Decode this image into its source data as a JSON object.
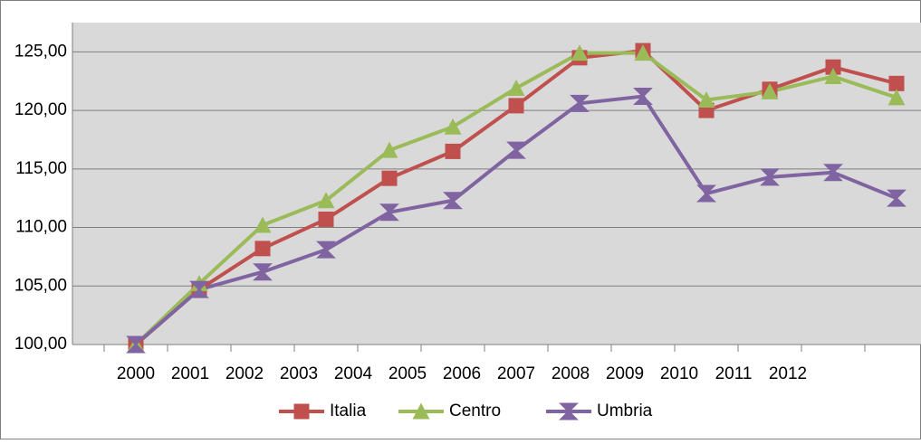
{
  "chart_data": {
    "type": "line",
    "categories": [
      "2000",
      "2001",
      "2002",
      "2003",
      "2004",
      "2005",
      "2006",
      "2007",
      "2008",
      "2009",
      "2010",
      "2011",
      "2012"
    ],
    "series": [
      {
        "name": "Italia",
        "color": "#c0504d",
        "marker": "square",
        "values": [
          100,
          104.7,
          108.2,
          110.7,
          114.2,
          116.5,
          120.4,
          124.5,
          125.1,
          120.0,
          121.8,
          123.7,
          122.3
        ]
      },
      {
        "name": "Centro",
        "color": "#9bbb59",
        "marker": "triangle",
        "values": [
          100,
          105.2,
          110.2,
          112.3,
          116.6,
          118.6,
          121.9,
          124.9,
          124.9,
          120.9,
          121.6,
          122.9,
          121.1
        ]
      },
      {
        "name": "Umbria",
        "color": "#8064a2",
        "marker": "hourglass",
        "values": [
          100,
          104.7,
          106.2,
          108.1,
          111.3,
          112.3,
          116.6,
          120.6,
          121.2,
          112.9,
          114.3,
          114.7,
          112.5
        ]
      }
    ],
    "ylim": [
      100,
      127.5
    ],
    "yticks": [
      {
        "value": 100,
        "label": "100,00"
      },
      {
        "value": 105,
        "label": "105,00"
      },
      {
        "value": 110,
        "label": "110,00"
      },
      {
        "value": 115,
        "label": "115,00"
      },
      {
        "value": 120,
        "label": "120,00"
      },
      {
        "value": 125,
        "label": "125,00"
      }
    ],
    "grid": true,
    "legend": "bottom"
  }
}
